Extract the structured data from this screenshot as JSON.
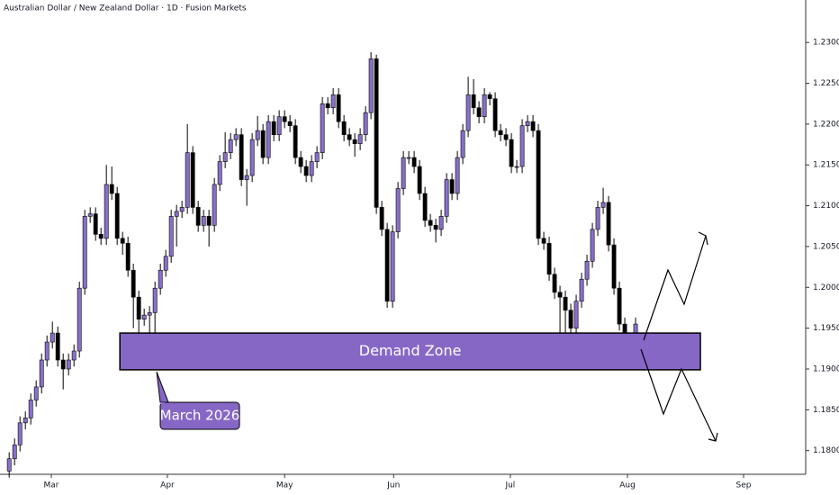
{
  "chart_data": {
    "type": "candlestick",
    "title": "Australian Dollar / New Zealand Dollar · 1D · Fusion Markets",
    "up_color": "#8a6fcb",
    "down_color": "#000000",
    "open": [
      1.1775,
      1.179,
      1.1807,
      1.1834,
      1.184,
      1.1862,
      1.1878,
      1.1911,
      1.1933,
      1.1944,
      1.1911,
      1.19,
      1.1911,
      1.1922,
      1.1999,
      1.2087,
      1.209,
      1.2065,
      1.206,
      1.2126,
      1.2115,
      1.206,
      1.2054,
      1.2021,
      1.1988,
      1.1961,
      1.1966,
      1.1969,
      1.1999,
      1.2021,
      1.2038,
      1.2087,
      1.2093,
      1.2098,
      1.2165,
      1.2098,
      1.2076,
      1.2087,
      1.2076,
      1.2126,
      1.2154,
      1.2165,
      1.2181,
      1.2187,
      1.2132,
      1.2137,
      1.2181,
      1.2192,
      1.2159,
      1.2203,
      1.2187,
      1.2209,
      1.2203,
      1.2198,
      1.2159,
      1.2148,
      1.2137,
      1.2154,
      1.2165,
      1.2225,
      1.222,
      1.2236,
      1.2203,
      1.2187,
      1.2181,
      1.2176,
      1.2187,
      1.2214,
      1.228,
      1.2098,
      1.2071,
      1.1983,
      1.2068,
      1.2121,
      1.2159,
      1.2159,
      1.2148,
      1.2115,
      1.2082,
      1.2076,
      1.2071,
      1.2087,
      1.2132,
      1.2115,
      1.2159,
      1.2192,
      1.2236,
      1.222,
      1.2209,
      1.2236,
      1.2231,
      1.2192,
      1.2187,
      1.2181,
      1.2148,
      1.2148,
      1.2198,
      1.2203,
      1.2192,
      1.206,
      1.2054,
      1.2016,
      1.1994,
      1.1988,
      1.1972,
      1.195,
      1.1983,
      1.201,
      1.2032,
      1.2071,
      1.2098,
      1.2104,
      1.2052,
      1.1999,
      1.1955,
      1.1935,
      1.1928
    ],
    "high": [
      1.1798,
      1.1815,
      1.1842,
      1.1848,
      1.187,
      1.1886,
      1.1919,
      1.1941,
      1.1958,
      1.1952,
      1.1919,
      1.1919,
      1.193,
      1.2007,
      1.2095,
      1.2098,
      1.2098,
      1.2073,
      1.215,
      1.2148,
      1.2123,
      1.2068,
      1.2062,
      1.2029,
      1.1996,
      1.1974,
      1.1977,
      1.2007,
      1.2029,
      1.2046,
      1.2095,
      1.2101,
      1.2106,
      1.22,
      1.2173,
      1.2106,
      1.2095,
      1.2095,
      1.2134,
      1.2162,
      1.219,
      1.2189,
      1.2195,
      1.2195,
      1.2145,
      1.2189,
      1.221,
      1.22,
      1.2211,
      1.2211,
      1.2217,
      1.2217,
      1.2211,
      1.2206,
      1.2167,
      1.2156,
      1.2162,
      1.2173,
      1.2233,
      1.2233,
      1.2244,
      1.2244,
      1.2211,
      1.2195,
      1.2189,
      1.2195,
      1.2222,
      1.2288,
      1.2285,
      1.2106,
      1.2079,
      1.2076,
      1.2129,
      1.2167,
      1.2167,
      1.2167,
      1.2156,
      1.2123,
      1.209,
      1.2084,
      1.2095,
      1.214,
      1.214,
      1.2167,
      1.22,
      1.2258,
      1.2255,
      1.2228,
      1.2244,
      1.2239,
      1.2239,
      1.22,
      1.2195,
      1.2189,
      1.2156,
      1.2206,
      1.2211,
      1.2211,
      1.22,
      1.2068,
      1.2062,
      1.2024,
      1.2002,
      1.1996,
      1.198,
      1.1991,
      1.2018,
      1.204,
      1.2079,
      1.2106,
      1.2122,
      1.2112,
      1.206,
      1.2007,
      1.1963,
      1.1943,
      1.1963
    ],
    "low": [
      1.1767,
      1.1782,
      1.1799,
      1.1826,
      1.1832,
      1.1854,
      1.187,
      1.1903,
      1.1925,
      1.1903,
      1.1875,
      1.1892,
      1.1903,
      1.1914,
      1.1991,
      1.2079,
      1.2057,
      1.2052,
      1.2052,
      1.2107,
      1.2052,
      1.204,
      1.2013,
      1.195,
      1.194,
      1.1953,
      1.1935,
      1.191,
      1.1991,
      1.2013,
      1.203,
      1.205,
      1.2085,
      1.209,
      1.209,
      1.2068,
      1.2068,
      1.205,
      1.2068,
      1.2118,
      1.2146,
      1.2157,
      1.2173,
      1.2124,
      1.21,
      1.2129,
      1.2173,
      1.2151,
      1.2151,
      1.2179,
      1.2179,
      1.2195,
      1.219,
      1.2151,
      1.214,
      1.2129,
      1.2129,
      1.2146,
      1.2157,
      1.2212,
      1.2212,
      1.2195,
      1.2179,
      1.2173,
      1.216,
      1.2168,
      1.2179,
      1.2206,
      1.209,
      1.2063,
      1.1975,
      1.1975,
      1.206,
      1.2113,
      1.2151,
      1.214,
      1.2107,
      1.2074,
      1.2068,
      1.2055,
      1.2063,
      1.2079,
      1.2107,
      1.2107,
      1.2151,
      1.2184,
      1.2212,
      1.2201,
      1.2201,
      1.2223,
      1.2184,
      1.2179,
      1.2173,
      1.214,
      1.214,
      1.214,
      1.219,
      1.2184,
      1.2052,
      1.2046,
      1.2008,
      1.1986,
      1.192,
      1.194,
      1.1935,
      1.1942,
      1.1975,
      1.2002,
      1.2024,
      1.2063,
      1.209,
      1.2044,
      1.1991,
      1.1947,
      1.192,
      1.1905,
      1.191
    ],
    "close": [
      1.179,
      1.1807,
      1.1834,
      1.184,
      1.1862,
      1.1878,
      1.1911,
      1.1933,
      1.1944,
      1.1911,
      1.19,
      1.1911,
      1.1922,
      1.1999,
      1.2087,
      1.209,
      1.2065,
      1.206,
      1.2126,
      1.2115,
      1.206,
      1.2054,
      1.2021,
      1.1988,
      1.1961,
      1.1966,
      1.1969,
      1.1999,
      1.2021,
      1.2038,
      1.2087,
      1.2093,
      1.2098,
      1.2165,
      1.2098,
      1.2076,
      1.2087,
      1.2076,
      1.2126,
      1.2154,
      1.2165,
      1.2181,
      1.2187,
      1.2132,
      1.2137,
      1.2181,
      1.2192,
      1.2159,
      1.2203,
      1.2187,
      1.2209,
      1.2203,
      1.2198,
      1.2159,
      1.2148,
      1.2137,
      1.2154,
      1.2165,
      1.2225,
      1.222,
      1.2236,
      1.2203,
      1.2187,
      1.2181,
      1.2176,
      1.2187,
      1.2214,
      1.228,
      1.2098,
      1.2071,
      1.1983,
      1.2068,
      1.2121,
      1.2159,
      1.2159,
      1.2148,
      1.2115,
      1.2082,
      1.2076,
      1.2071,
      1.2087,
      1.2132,
      1.2115,
      1.2159,
      1.2192,
      1.2236,
      1.222,
      1.2209,
      1.2236,
      1.2231,
      1.2192,
      1.2187,
      1.2181,
      1.2148,
      1.2148,
      1.2198,
      1.2203,
      1.2192,
      1.206,
      1.2054,
      1.2016,
      1.1994,
      1.1988,
      1.1972,
      1.195,
      1.1983,
      1.201,
      1.2032,
      1.2071,
      1.2098,
      1.2104,
      1.2052,
      1.1999,
      1.1955,
      1.1935,
      1.1928,
      1.1955
    ],
    "xlim": [
      -1.7,
      147.5
    ],
    "xticks": [
      {
        "value": 7.8,
        "label": "Mar"
      },
      {
        "value": 29.3,
        "label": "Apr"
      },
      {
        "value": 51,
        "label": "May"
      },
      {
        "value": 71.2,
        "label": "Jun"
      },
      {
        "value": 92.8,
        "label": "Jul"
      },
      {
        "value": 114.5,
        "label": "Aug"
      },
      {
        "value": 136,
        "label": "Sep"
      }
    ],
    "ylim": [
      1.1771,
      1.2352
    ],
    "yticks": [
      {
        "value": 1.18,
        "label": "1.18000"
      },
      {
        "value": 1.185,
        "label": "1.18500"
      },
      {
        "value": 1.19,
        "label": "1.19000"
      },
      {
        "value": 1.195,
        "label": "1.19500"
      },
      {
        "value": 1.2,
        "label": "1.20000"
      },
      {
        "value": 1.205,
        "label": "1.20500"
      },
      {
        "value": 1.21,
        "label": "1.21000"
      },
      {
        "value": 1.215,
        "label": "1.21500"
      },
      {
        "value": 1.22,
        "label": "1.22000"
      },
      {
        "value": 1.225,
        "label": "1.22500"
      },
      {
        "value": 1.23,
        "label": "1.23000"
      }
    ],
    "zone": {
      "label": "Demand Zone",
      "x": [
        20.5,
        128
      ],
      "y": [
        1.1899,
        1.1944
      ],
      "color": "#8767c6"
    },
    "callout": "March 2026"
  }
}
